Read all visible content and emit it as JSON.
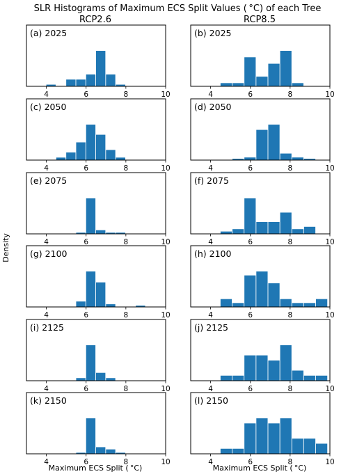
{
  "figure": {
    "title": "SLR Histograms of Maximum ECS Split Values ($^\\circ$C) of each Tree",
    "title_display": "SLR Histograms of Maximum ECS Split Values ( $^\\circ$C) of each Tree",
    "title_text": "SLR Histograms of Maximum ECS Split Values ( °C) of each Tree",
    "column_titles": [
      "RCP2.6",
      "RCP8.5"
    ],
    "ylabel": "Density",
    "xlabel": "Maximum ECS Split ( °C)",
    "bar_color": "#1f77b4"
  },
  "chart_data": [
    {
      "type": "bar",
      "panel": "(a) 2025",
      "scenario": "RCP2.6",
      "xlim": [
        3,
        10
      ],
      "xticks": [
        4,
        6,
        8,
        10
      ],
      "bin_width": 0.5,
      "bins": [
        [
          4.0,
          1
        ],
        [
          4.5,
          0
        ],
        [
          5.0,
          4
        ],
        [
          5.5,
          4
        ],
        [
          6.0,
          7
        ],
        [
          6.5,
          21
        ],
        [
          7.0,
          7
        ],
        [
          7.5,
          1
        ]
      ]
    },
    {
      "type": "bar",
      "panel": "(b) 2025",
      "scenario": "RCP8.5",
      "xlim": [
        3,
        10
      ],
      "xticks": [
        4,
        6,
        8,
        10
      ],
      "bin_width": 0.6,
      "bins": [
        [
          4.5,
          1
        ],
        [
          5.1,
          1
        ],
        [
          5.7,
          9
        ],
        [
          6.3,
          3
        ],
        [
          6.9,
          7
        ],
        [
          7.5,
          11
        ],
        [
          8.1,
          1
        ]
      ]
    },
    {
      "type": "bar",
      "panel": "(c) 2050",
      "scenario": "RCP2.6",
      "xlim": [
        3,
        10
      ],
      "xticks": [
        4,
        6,
        8,
        10
      ],
      "bin_width": 0.5,
      "bins": [
        [
          4.5,
          1
        ],
        [
          5.0,
          3
        ],
        [
          5.5,
          7
        ],
        [
          6.0,
          14
        ],
        [
          6.5,
          10
        ],
        [
          7.0,
          4
        ],
        [
          7.5,
          1
        ]
      ]
    },
    {
      "type": "bar",
      "panel": "(d) 2050",
      "scenario": "RCP8.5",
      "xlim": [
        3,
        10
      ],
      "xticks": [
        4,
        6,
        8,
        10
      ],
      "bin_width": 0.6,
      "bins": [
        [
          5.1,
          1
        ],
        [
          5.7,
          2
        ],
        [
          6.3,
          23
        ],
        [
          6.9,
          27
        ],
        [
          7.5,
          5
        ],
        [
          8.1,
          2
        ],
        [
          8.7,
          1
        ]
      ]
    },
    {
      "type": "bar",
      "panel": "(e) 2075",
      "scenario": "RCP2.6",
      "xlim": [
        3,
        10
      ],
      "xticks": [
        4,
        6,
        8,
        10
      ],
      "bin_width": 0.5,
      "bins": [
        [
          5.5,
          1
        ],
        [
          6.0,
          29
        ],
        [
          6.5,
          3
        ],
        [
          7.0,
          1
        ],
        [
          7.5,
          1
        ]
      ]
    },
    {
      "type": "bar",
      "panel": "(f) 2075",
      "scenario": "RCP8.5",
      "xlim": [
        3,
        10
      ],
      "xticks": [
        4,
        6,
        8,
        10
      ],
      "bin_width": 0.6,
      "bins": [
        [
          4.5,
          1
        ],
        [
          5.1,
          2
        ],
        [
          5.7,
          15
        ],
        [
          6.3,
          5
        ],
        [
          6.9,
          5
        ],
        [
          7.5,
          9
        ],
        [
          8.1,
          2
        ],
        [
          8.7,
          3
        ]
      ]
    },
    {
      "type": "bar",
      "panel": "(g) 2100",
      "scenario": "RCP2.6",
      "xlim": [
        3,
        10
      ],
      "xticks": [
        4,
        6,
        8,
        10
      ],
      "bin_width": 0.5,
      "bins": [
        [
          5.5,
          2
        ],
        [
          6.0,
          13
        ],
        [
          6.5,
          9
        ],
        [
          7.0,
          1
        ],
        [
          8.5,
          0.5
        ]
      ]
    },
    {
      "type": "bar",
      "panel": "(h) 2100",
      "scenario": "RCP8.5",
      "xlim": [
        3,
        10
      ],
      "xticks": [
        4,
        6,
        8,
        10
      ],
      "bin_width": 0.6,
      "bins": [
        [
          4.5,
          2
        ],
        [
          5.1,
          1
        ],
        [
          5.7,
          8
        ],
        [
          6.3,
          9
        ],
        [
          6.9,
          6
        ],
        [
          7.5,
          2
        ],
        [
          8.1,
          1
        ],
        [
          8.7,
          1
        ],
        [
          9.3,
          2
        ]
      ]
    },
    {
      "type": "bar",
      "panel": "(i) 2125",
      "scenario": "RCP2.6",
      "xlim": [
        3,
        10
      ],
      "xticks": [
        4,
        6,
        8,
        10
      ],
      "bin_width": 0.5,
      "bins": [
        [
          5.5,
          2
        ],
        [
          6.0,
          27
        ],
        [
          6.5,
          6
        ],
        [
          7.0,
          2
        ]
      ]
    },
    {
      "type": "bar",
      "panel": "(j) 2125",
      "scenario": "RCP8.5",
      "xlim": [
        3,
        10
      ],
      "xticks": [
        4,
        6,
        8,
        10
      ],
      "bin_width": 0.6,
      "bins": [
        [
          4.5,
          1
        ],
        [
          5.1,
          1
        ],
        [
          5.7,
          5
        ],
        [
          6.3,
          5
        ],
        [
          6.9,
          4
        ],
        [
          7.5,
          7
        ],
        [
          8.1,
          2
        ],
        [
          8.7,
          1
        ],
        [
          9.3,
          1
        ]
      ]
    },
    {
      "type": "bar",
      "panel": "(k) 2150",
      "scenario": "RCP2.6",
      "xlim": [
        3,
        10
      ],
      "xticks": [
        4,
        6,
        8,
        10
      ],
      "bin_width": 0.5,
      "bins": [
        [
          5.5,
          1
        ],
        [
          6.0,
          32
        ],
        [
          6.5,
          6
        ],
        [
          7.0,
          4
        ],
        [
          7.5,
          1
        ]
      ]
    },
    {
      "type": "bar",
      "panel": "(l) 2150",
      "scenario": "RCP8.5",
      "xlim": [
        3,
        10
      ],
      "xticks": [
        4,
        6,
        8,
        10
      ],
      "bin_width": 0.6,
      "bins": [
        [
          4.5,
          1
        ],
        [
          5.1,
          1
        ],
        [
          5.7,
          6
        ],
        [
          6.3,
          7
        ],
        [
          6.9,
          6
        ],
        [
          7.5,
          7
        ],
        [
          8.1,
          3
        ],
        [
          8.7,
          3
        ],
        [
          9.3,
          2
        ]
      ]
    }
  ]
}
